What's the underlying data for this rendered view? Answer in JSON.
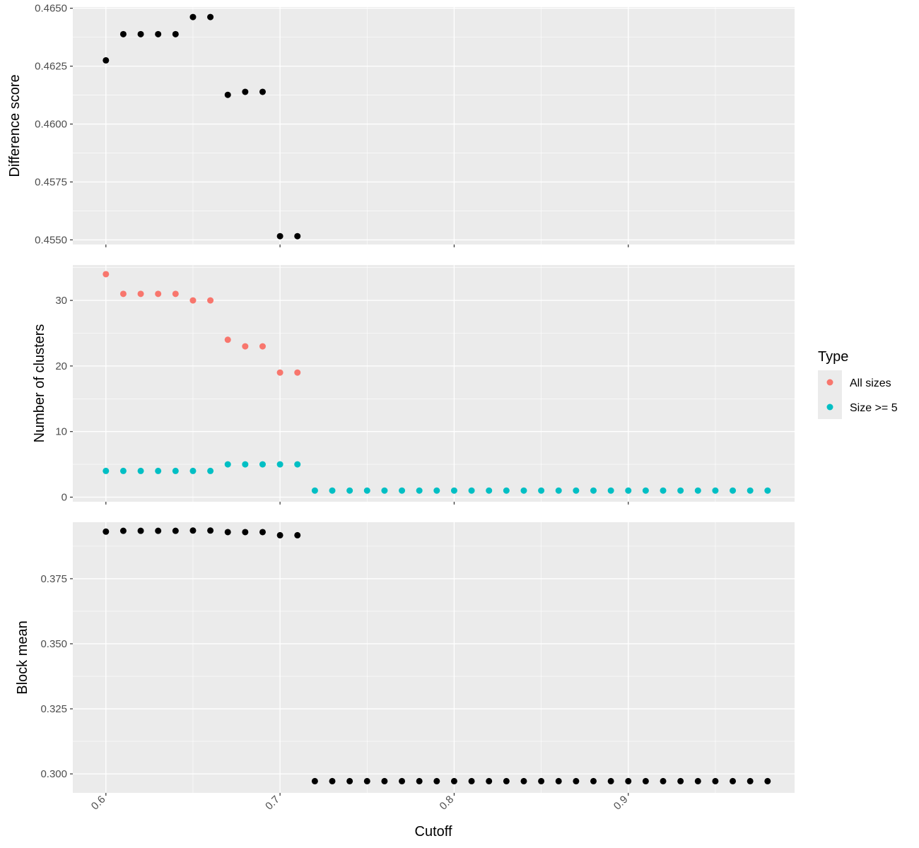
{
  "chart_data": [
    {
      "type": "scatter",
      "title": "",
      "xlabel": "",
      "ylabel": "Difference score",
      "xlim": [
        0.581,
        0.9955
      ],
      "ylim": [
        0.4548,
        0.46505
      ],
      "yticks": [
        0.455,
        0.4575,
        0.46,
        0.4625,
        0.465
      ],
      "ytick_labels": [
        "0.4550",
        "0.4575",
        "0.4600",
        "0.4625",
        "0.4650"
      ],
      "grid": true,
      "series": [
        {
          "color": "#000000",
          "points": [
            [
              0.6,
              0.46275
            ],
            [
              0.61,
              0.46388
            ],
            [
              0.62,
              0.46388
            ],
            [
              0.63,
              0.46388
            ],
            [
              0.64,
              0.46388
            ],
            [
              0.65,
              0.46462
            ],
            [
              0.66,
              0.46462
            ],
            [
              0.67,
              0.46126
            ],
            [
              0.68,
              0.46139
            ],
            [
              0.69,
              0.46139
            ],
            [
              0.7,
              0.45516
            ],
            [
              0.71,
              0.45516
            ]
          ]
        }
      ]
    },
    {
      "type": "scatter",
      "title": "",
      "xlabel": "",
      "ylabel": "Number of clusters",
      "xlim": [
        0.581,
        0.9955
      ],
      "ylim": [
        -0.7,
        35.4
      ],
      "yticks": [
        0,
        10,
        20,
        30
      ],
      "ytick_labels": [
        "0",
        "10",
        "20",
        "30"
      ],
      "grid": true,
      "legend_position": "right",
      "series": [
        {
          "name": "All sizes",
          "color": "#F8766D",
          "points": [
            [
              0.6,
              34
            ],
            [
              0.61,
              31
            ],
            [
              0.62,
              31
            ],
            [
              0.63,
              31
            ],
            [
              0.64,
              31
            ],
            [
              0.65,
              30
            ],
            [
              0.66,
              30
            ],
            [
              0.67,
              24
            ],
            [
              0.68,
              23
            ],
            [
              0.69,
              23
            ],
            [
              0.7,
              19
            ],
            [
              0.71,
              19
            ]
          ]
        },
        {
          "name": "Size >= 5",
          "color": "#00BFC4",
          "points": [
            [
              0.6,
              4
            ],
            [
              0.61,
              4
            ],
            [
              0.62,
              4
            ],
            [
              0.63,
              4
            ],
            [
              0.64,
              4
            ],
            [
              0.65,
              4
            ],
            [
              0.66,
              4
            ],
            [
              0.67,
              5
            ],
            [
              0.68,
              5
            ],
            [
              0.69,
              5
            ],
            [
              0.7,
              5
            ],
            [
              0.71,
              5
            ],
            [
              0.72,
              1
            ],
            [
              0.73,
              1
            ],
            [
              0.74,
              1
            ],
            [
              0.75,
              1
            ],
            [
              0.76,
              1
            ],
            [
              0.77,
              1
            ],
            [
              0.78,
              1
            ],
            [
              0.79,
              1
            ],
            [
              0.8,
              1
            ],
            [
              0.81,
              1
            ],
            [
              0.82,
              1
            ],
            [
              0.83,
              1
            ],
            [
              0.84,
              1
            ],
            [
              0.85,
              1
            ],
            [
              0.86,
              1
            ],
            [
              0.87,
              1
            ],
            [
              0.88,
              1
            ],
            [
              0.89,
              1
            ],
            [
              0.9,
              1
            ],
            [
              0.91,
              1
            ],
            [
              0.92,
              1
            ],
            [
              0.93,
              1
            ],
            [
              0.94,
              1
            ],
            [
              0.95,
              1
            ],
            [
              0.96,
              1
            ],
            [
              0.97,
              1
            ],
            [
              0.98,
              1
            ]
          ]
        }
      ]
    },
    {
      "type": "scatter",
      "title": "",
      "xlabel": "Cutoff",
      "ylabel": "Block mean",
      "xlim": [
        0.581,
        0.9955
      ],
      "ylim": [
        0.2927,
        0.3967
      ],
      "yticks": [
        0.3,
        0.325,
        0.35,
        0.375
      ],
      "ytick_labels": [
        "0.300",
        "0.325",
        "0.350",
        "0.375"
      ],
      "xticks": [
        0.6,
        0.7,
        0.8,
        0.9
      ],
      "xtick_labels": [
        "0.6",
        "0.7",
        "0.8",
        "0.9"
      ],
      "grid": true,
      "series": [
        {
          "color": "#000000",
          "points": [
            [
              0.6,
              0.3931
            ],
            [
              0.61,
              0.3934
            ],
            [
              0.62,
              0.3934
            ],
            [
              0.63,
              0.3934
            ],
            [
              0.64,
              0.3934
            ],
            [
              0.65,
              0.3935
            ],
            [
              0.66,
              0.3935
            ],
            [
              0.67,
              0.3929
            ],
            [
              0.68,
              0.3929
            ],
            [
              0.69,
              0.3929
            ],
            [
              0.7,
              0.3917
            ],
            [
              0.71,
              0.3917
            ],
            [
              0.72,
              0.2972
            ],
            [
              0.73,
              0.2972
            ],
            [
              0.74,
              0.2972
            ],
            [
              0.75,
              0.2972
            ],
            [
              0.76,
              0.2972
            ],
            [
              0.77,
              0.2972
            ],
            [
              0.78,
              0.2972
            ],
            [
              0.79,
              0.2972
            ],
            [
              0.8,
              0.2972
            ],
            [
              0.81,
              0.2972
            ],
            [
              0.82,
              0.2972
            ],
            [
              0.83,
              0.2972
            ],
            [
              0.84,
              0.2972
            ],
            [
              0.85,
              0.2972
            ],
            [
              0.86,
              0.2972
            ],
            [
              0.87,
              0.2972
            ],
            [
              0.88,
              0.2972
            ],
            [
              0.89,
              0.2972
            ],
            [
              0.9,
              0.2972
            ],
            [
              0.91,
              0.2972
            ],
            [
              0.92,
              0.2972
            ],
            [
              0.93,
              0.2972
            ],
            [
              0.94,
              0.2972
            ],
            [
              0.95,
              0.2972
            ],
            [
              0.96,
              0.2972
            ],
            [
              0.97,
              0.2972
            ],
            [
              0.98,
              0.2972
            ]
          ]
        }
      ]
    }
  ],
  "legend": {
    "title": "Type",
    "items": [
      {
        "label": "All sizes",
        "color": "#F8766D"
      },
      {
        "label": "Size >= 5",
        "color": "#00BFC4"
      }
    ]
  }
}
